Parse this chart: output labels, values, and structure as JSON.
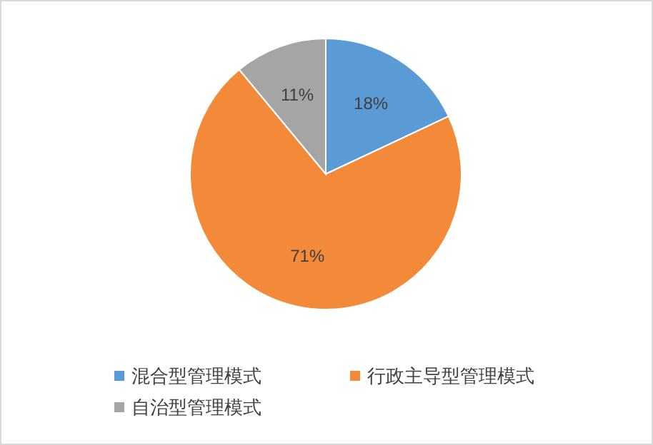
{
  "chart_data": {
    "type": "pie",
    "categories": [
      "混合型管理模式",
      "行政主导型管理模式",
      "自治型管理模式"
    ],
    "values": [
      18,
      71,
      11
    ],
    "colors": [
      "#5b9bd5",
      "#f28a3a",
      "#a5a5a5"
    ],
    "value_labels": [
      "18%",
      "71%",
      "11%"
    ],
    "legend": "bottom"
  }
}
